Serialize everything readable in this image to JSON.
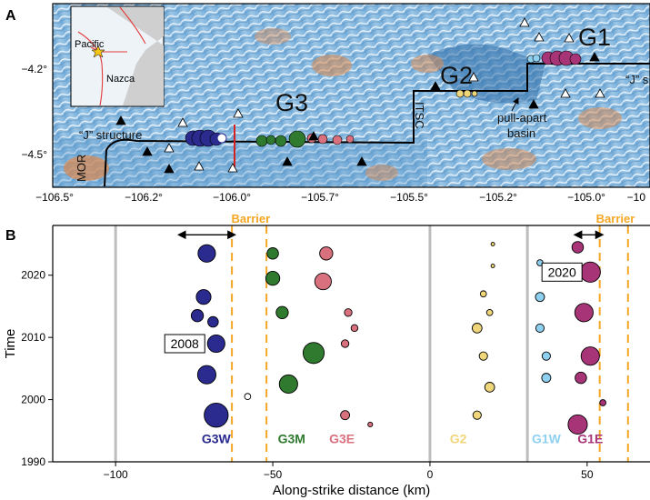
{
  "panel_a": {
    "letter": "A",
    "x_ticks": [
      "−106.5°",
      "−106.2°",
      "−106.0°",
      "−105.7°",
      "−105.5°",
      "−105.2°",
      "−105.0°",
      "−10"
    ],
    "y_ticks": [
      "−4.2°",
      "−4.5°"
    ],
    "clusters": [
      "G1",
      "G2",
      "G3"
    ],
    "inset_labels": {
      "pacific": "Pacific",
      "nazca": "Nazca"
    },
    "annotations": {
      "j_left": "“J” structure",
      "j_right": "“J” s",
      "pullapart_1": "pull-apart",
      "pullapart_2": "basin",
      "mor": "MOR",
      "itsc": "ITSC"
    }
  },
  "chart_data": {
    "type": "scatter",
    "xlabel": "Along-strike distance (km)",
    "ylabel": "Time",
    "xlim": [
      -120,
      70
    ],
    "ylim": [
      1990,
      2028
    ],
    "x_ticks": [
      -100,
      -50,
      0,
      50
    ],
    "y_ticks": [
      1990,
      2000,
      2010,
      2020
    ],
    "panel_letter": "B",
    "grid": false,
    "gray_lines_x": [
      -100,
      0,
      31
    ],
    "barrier_label": "Barrier",
    "barrier_lines_x": [
      -63,
      -52,
      54,
      63
    ],
    "arrows": [
      {
        "x1": -80,
        "x2": -62,
        "y": 2026.5
      },
      {
        "x1": 46,
        "x2": 55,
        "y": 2026.5
      }
    ],
    "boxed_labels": [
      {
        "text": "2008",
        "x": -78,
        "y": 2009
      },
      {
        "text": "2020",
        "x": 42,
        "y": 2020.5
      }
    ],
    "groups": [
      {
        "name": "G3W",
        "color": "#2a2a8f",
        "label_x": -68
      },
      {
        "name": "G3M",
        "color": "#2f7a2f",
        "label_x": -44
      },
      {
        "name": "G3E",
        "color": "#d8707e",
        "label_x": -28
      },
      {
        "name": "G2",
        "color": "#f0d67a",
        "label_x": 9
      },
      {
        "name": "G1W",
        "color": "#8fd0f0",
        "label_x": 37
      },
      {
        "name": "G1E",
        "color": "#a83478",
        "label_x": 51
      }
    ],
    "events": [
      {
        "g": 0,
        "x": -71,
        "t": 2023.5,
        "m": 5.9
      },
      {
        "g": 0,
        "x": -72,
        "t": 2016.5,
        "m": 5.6
      },
      {
        "g": 0,
        "x": -74,
        "t": 2013.5,
        "m": 5.3
      },
      {
        "g": 0,
        "x": -69,
        "t": 2012.5,
        "m": 5.1
      },
      {
        "g": 0,
        "x": -68,
        "t": 2009,
        "m": 5.9
      },
      {
        "g": 0,
        "x": -71,
        "t": 2004,
        "m": 6.0
      },
      {
        "g": 0,
        "x": -68,
        "t": 1997.5,
        "m": 6.6
      },
      {
        "g": 1,
        "x": -50,
        "t": 2023.5,
        "m": 5.2
      },
      {
        "g": 1,
        "x": -50,
        "t": 2019.5,
        "m": 5.5
      },
      {
        "g": 1,
        "x": -47,
        "t": 2014,
        "m": 5.3
      },
      {
        "g": 1,
        "x": -37,
        "t": 2007.5,
        "m": 6.3
      },
      {
        "g": 1,
        "x": -45,
        "t": 2002.5,
        "m": 6.0
      },
      {
        "g": 2,
        "x": -33,
        "t": 2023.5,
        "m": 5.4
      },
      {
        "g": 2,
        "x": -34,
        "t": 2019,
        "m": 5.8
      },
      {
        "g": 2,
        "x": -26,
        "t": 2014,
        "m": 4.7
      },
      {
        "g": 2,
        "x": -24,
        "t": 2011.5,
        "m": 4.6
      },
      {
        "g": 2,
        "x": -27,
        "t": 2009,
        "m": 4.7
      },
      {
        "g": 2,
        "x": -27,
        "t": 1997.5,
        "m": 4.9
      },
      {
        "g": 2,
        "x": -19,
        "t": 1996,
        "m": 4.3
      },
      {
        "g": 3,
        "x": 20,
        "t": 2025,
        "m": 4.1
      },
      {
        "g": 3,
        "x": 20,
        "t": 2021.5,
        "m": 4.0
      },
      {
        "g": 3,
        "x": 17,
        "t": 2017,
        "m": 4.5
      },
      {
        "g": 3,
        "x": 19,
        "t": 2014,
        "m": 4.5
      },
      {
        "g": 3,
        "x": 15,
        "t": 2011.5,
        "m": 5.0
      },
      {
        "g": 3,
        "x": 17,
        "t": 2007,
        "m": 4.8
      },
      {
        "g": 3,
        "x": 19,
        "t": 2002,
        "m": 5.0
      },
      {
        "g": 3,
        "x": 15,
        "t": 1997.5,
        "m": 4.8
      },
      {
        "g": 4,
        "x": 35,
        "t": 2022,
        "m": 4.5
      },
      {
        "g": 4,
        "x": 35,
        "t": 2016.5,
        "m": 4.9
      },
      {
        "g": 4,
        "x": 35,
        "t": 2011.5,
        "m": 4.8
      },
      {
        "g": 4,
        "x": 37,
        "t": 2007,
        "m": 4.8
      },
      {
        "g": 4,
        "x": 37,
        "t": 2003.5,
        "m": 4.9
      },
      {
        "g": 5,
        "x": 47,
        "t": 2024.5,
        "m": 5.2
      },
      {
        "g": 5,
        "x": 51,
        "t": 2020.5,
        "m": 6.2
      },
      {
        "g": 5,
        "x": 49,
        "t": 2014,
        "m": 6.0
      },
      {
        "g": 5,
        "x": 51,
        "t": 2007,
        "m": 6.0
      },
      {
        "g": 5,
        "x": 48,
        "t": 2003.5,
        "m": 5.2
      },
      {
        "g": 5,
        "x": 55,
        "t": 1999.5,
        "m": 4.5
      },
      {
        "g": 5,
        "x": 47,
        "t": 1996,
        "m": 6.1
      },
      {
        "g": -1,
        "x": -58,
        "t": 2000.5,
        "m": 4.5
      }
    ]
  }
}
